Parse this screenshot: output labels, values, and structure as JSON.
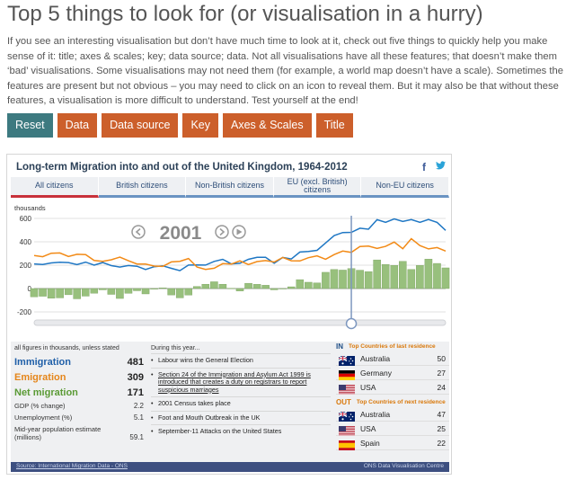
{
  "page": {
    "title": "Top 5 things to look for (or visualisation in a hurry)",
    "intro": "If you see an interesting visualisation but don’t have much time to look at it, check out five things to quickly help you make sense of it: title; axes & scales; key; data source; data. Not all visualisations have all these features; that doesn’t make them ‘bad’ visualisations. Some visualisations may not need them (for example, a world map doesn’t have a scale). Sometimes the features are present but not obvious – you may need to click on an icon to reveal them. But it may also be that without these features, a visualisation is more difficult to understand. Test yourself at the end!"
  },
  "buttons": {
    "reset": "Reset",
    "data": "Data",
    "data_source": "Data source",
    "key": "Key",
    "axes_scales": "Axes & Scales",
    "title": "Title"
  },
  "viz": {
    "title": "Long-term Migration into and out of the United Kingdom, 1964-2012",
    "share_facebook": "f",
    "share_twitter": "🐦",
    "tabs": [
      "All citizens",
      "British citizens",
      "Non-British citizens",
      "EU (excl. British) citizens",
      "Non-EU citizens"
    ],
    "active_tab": 0,
    "unit_label": "thousands",
    "year": "2001",
    "colors": {
      "immigration": "#1f77c4",
      "emigration": "#f28a16",
      "net": "#98c07d",
      "net_stroke": "#7aa25f",
      "year_marker": "#7d97bf"
    }
  },
  "chart_data": {
    "type": "line",
    "title": "Long-term Migration into and out of the United Kingdom, 1964-2012",
    "ylabel": "thousands",
    "xlim": [
      1964,
      2012
    ],
    "ylim": [
      -200,
      600
    ],
    "yticks": [
      600,
      400,
      200,
      0,
      -200
    ],
    "selected_year": 2001,
    "x": [
      1964,
      1965,
      1966,
      1967,
      1968,
      1969,
      1970,
      1971,
      1972,
      1973,
      1974,
      1975,
      1976,
      1977,
      1978,
      1979,
      1980,
      1981,
      1982,
      1983,
      1984,
      1985,
      1986,
      1987,
      1988,
      1989,
      1990,
      1991,
      1992,
      1993,
      1994,
      1995,
      1996,
      1997,
      1998,
      1999,
      2000,
      2001,
      2002,
      2003,
      2004,
      2005,
      2006,
      2007,
      2008,
      2009,
      2010,
      2011,
      2012
    ],
    "series": [
      {
        "name": "Immigration",
        "values": [
          211,
          206,
          219,
          225,
          222,
          205,
          226,
          200,
          222,
          196,
          184,
          197,
          191,
          163,
          187,
          195,
          173,
          153,
          201,
          202,
          201,
          232,
          250,
          211,
          216,
          250,
          267,
          267,
          216,
          266,
          253,
          312,
          318,
          327,
          390,
          454,
          479,
          481,
          516,
          508,
          589,
          567,
          596,
          574,
          590,
          567,
          591,
          566,
          498
        ]
      },
      {
        "name": "Emigration",
        "values": [
          282,
          272,
          302,
          305,
          275,
          293,
          291,
          240,
          233,
          246,
          269,
          238,
          210,
          209,
          192,
          189,
          228,
          233,
          257,
          184,
          164,
          174,
          213,
          209,
          237,
          205,
          231,
          239,
          227,
          266,
          238,
          236,
          264,
          279,
          251,
          291,
          321,
          309,
          359,
          363,
          344,
          361,
          398,
          341,
          427,
          368,
          339,
          351,
          321
        ]
      },
      {
        "name": "Net migration",
        "values": [
          -71,
          -66,
          -83,
          -80,
          -53,
          -88,
          -65,
          -40,
          -11,
          -50,
          -85,
          -41,
          -19,
          -46,
          -5,
          6,
          -55,
          -80,
          -56,
          18,
          37,
          58,
          37,
          2,
          -21,
          45,
          36,
          28,
          -11,
          0,
          15,
          76,
          54,
          48,
          139,
          163,
          158,
          171,
          157,
          145,
          245,
          206,
          198,
          233,
          163,
          198,
          252,
          215,
          177
        ]
      }
    ]
  },
  "info": {
    "note": "all figures in thousands, unless stated",
    "immigration_label": "Immigration",
    "immigration_value": "481",
    "emigration_label": "Emigration",
    "emigration_value": "309",
    "net_label": "Net migration",
    "net_value": "171",
    "gdp_label": "GDP (% change)",
    "gdp_value": "2.2",
    "unemployment_label": "Unemployment (%)",
    "unemployment_value": "5.1",
    "population_label": "Mid-year population estimate (millions)",
    "population_value": "59.1",
    "events_heading": "During this year...",
    "events": [
      "Labour wins the General Election",
      "Section 24 of the Immigration and Asylum Act 1999 is introduced that creates a duty on registrars to report suspicious marriages",
      "2001 Census takes place",
      "Foot and Mouth Outbreak in the UK",
      "September-11 Attacks on the United States"
    ],
    "in_label": "IN",
    "in_heading": "Top Countries of last residence",
    "in_countries": [
      {
        "name": "Australia",
        "value": "50",
        "flag": "australia-flag"
      },
      {
        "name": "Germany",
        "value": "27",
        "flag": "germany-flag"
      },
      {
        "name": "USA",
        "value": "24",
        "flag": "usa-flag"
      }
    ],
    "out_label": "OUT",
    "out_heading": "Top Countries of next residence",
    "out_countries": [
      {
        "name": "Australia",
        "value": "47",
        "flag": "australia-flag"
      },
      {
        "name": "USA",
        "value": "25",
        "flag": "usa-flag"
      },
      {
        "name": "Spain",
        "value": "22",
        "flag": "spain-flag"
      }
    ],
    "footer_left": "Source: International Migration Data - ONS",
    "footer_right": "ONS Data Visualisation Centre"
  }
}
